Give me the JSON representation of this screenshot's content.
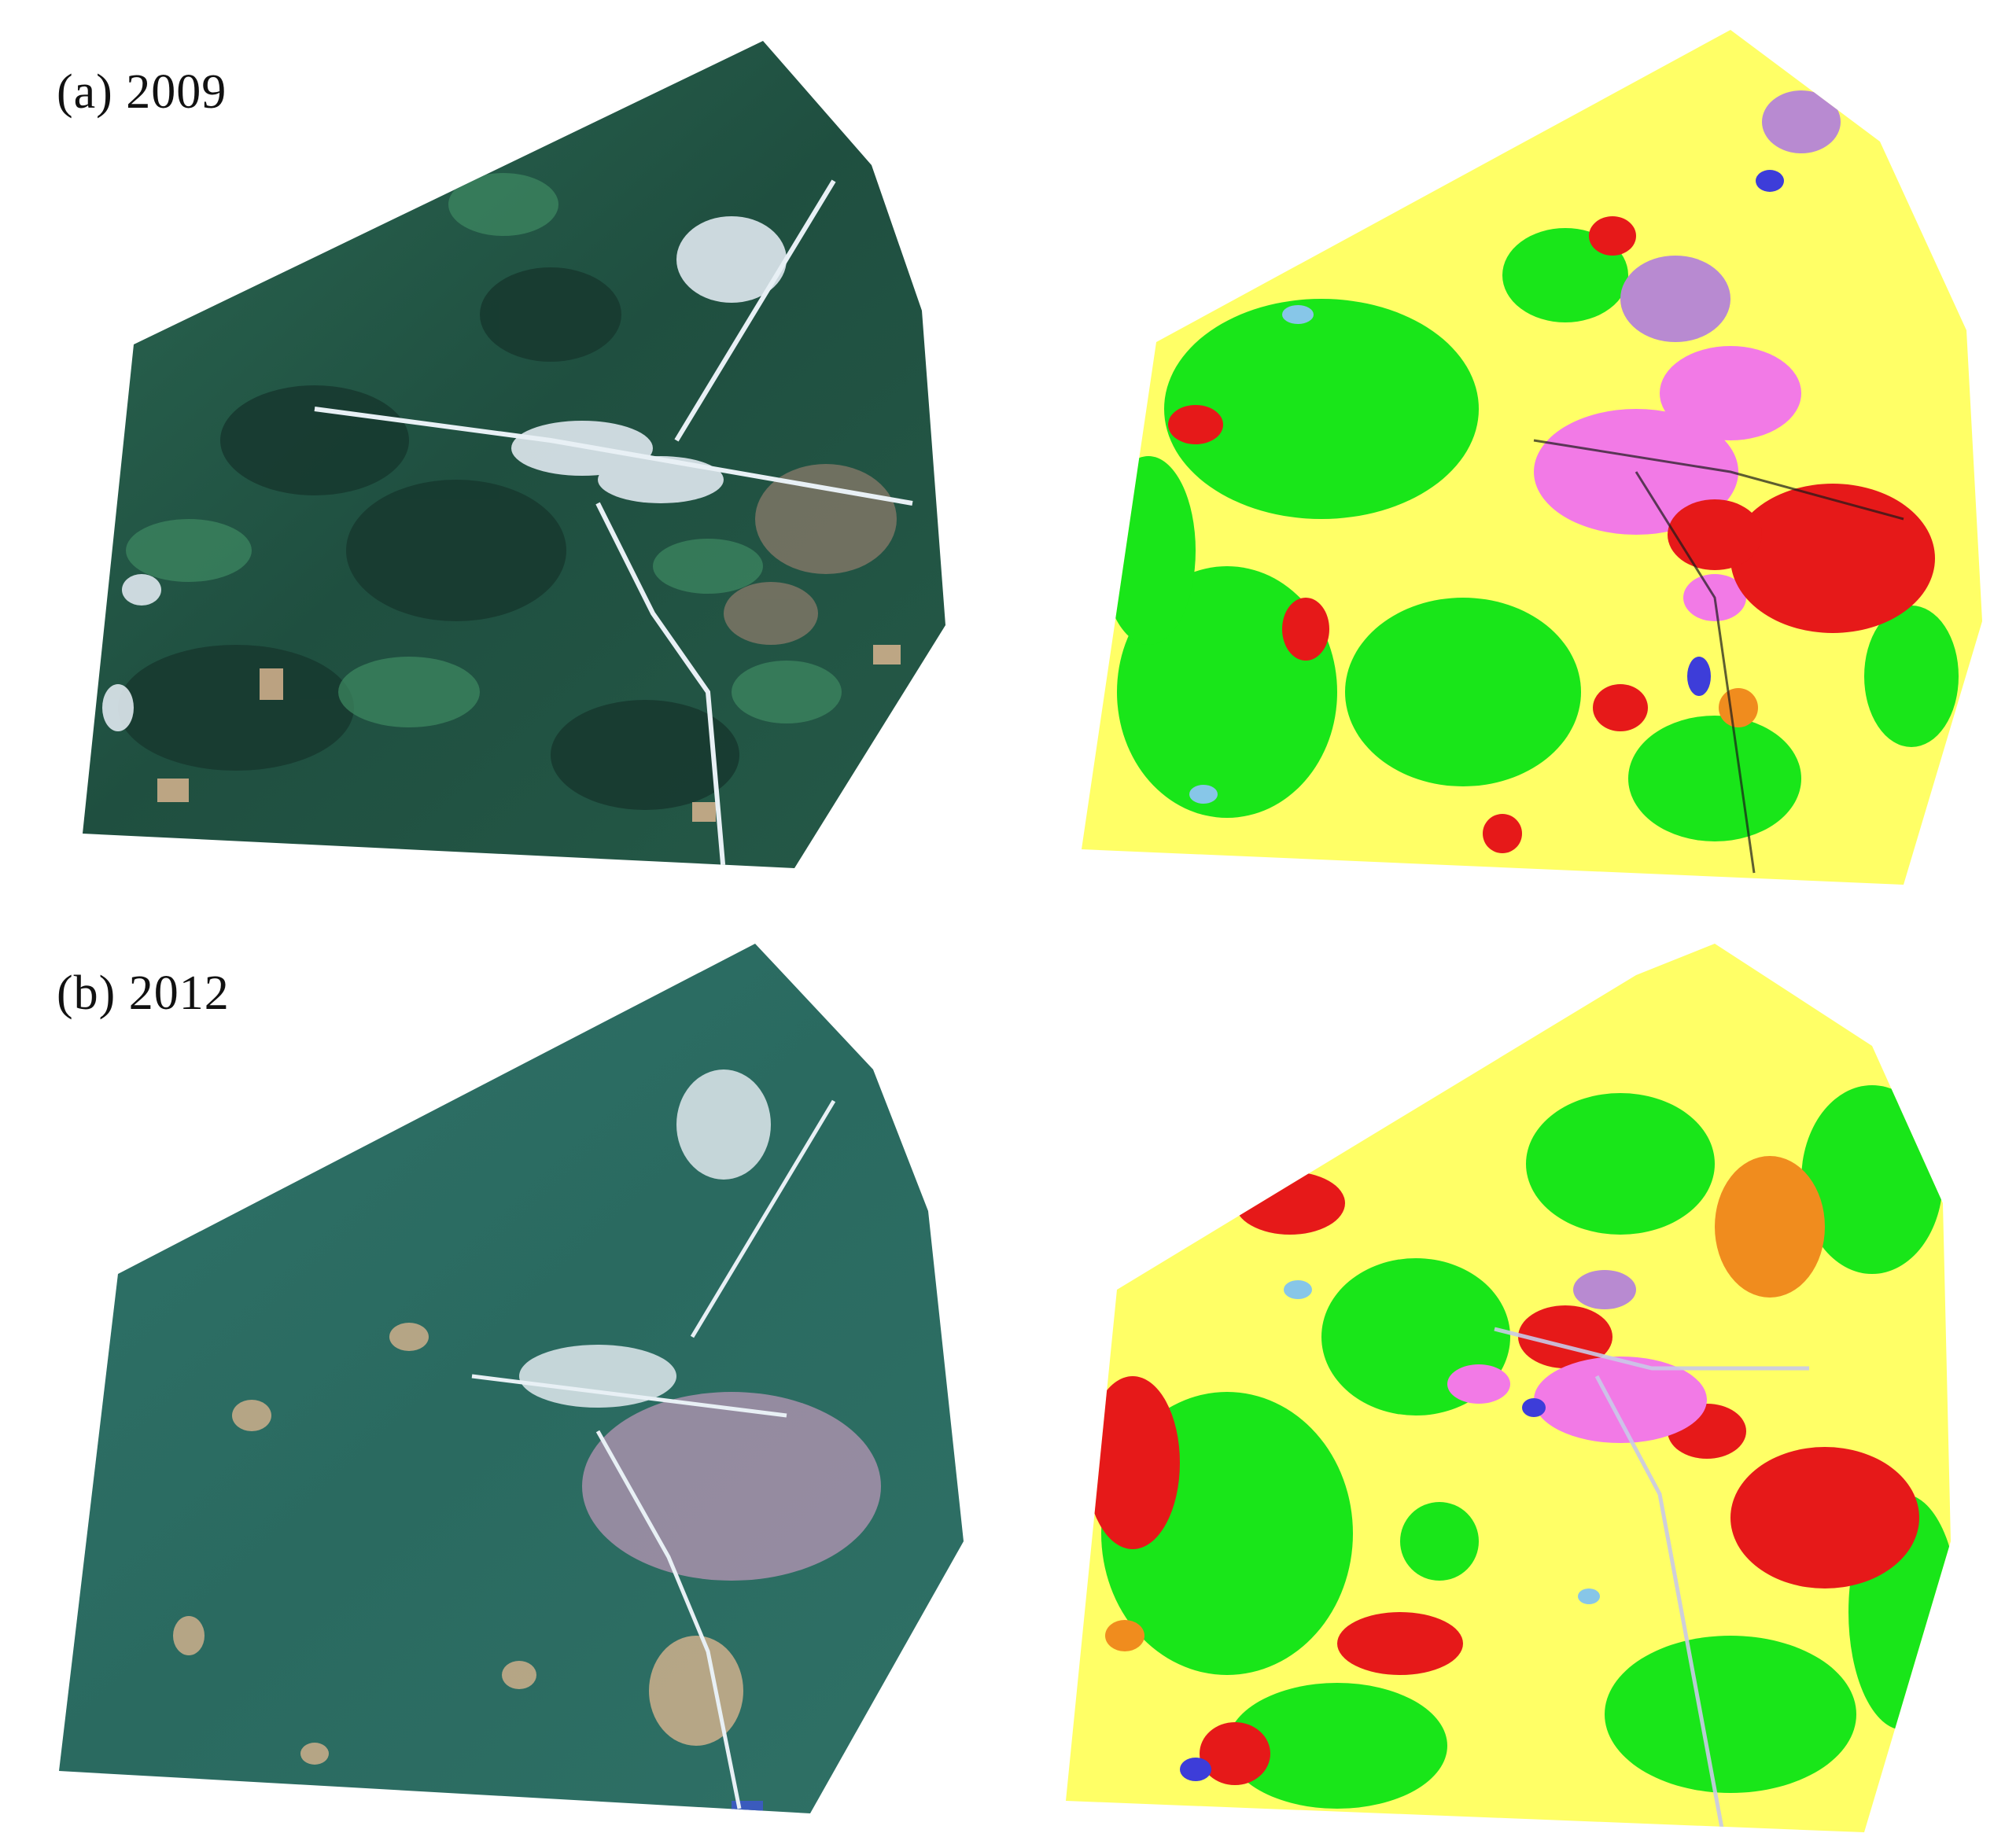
{
  "figure": {
    "panels": [
      {
        "label": "(a) 2009"
      },
      {
        "label": "(b) 2012"
      }
    ]
  },
  "imagery": {
    "kind": "satellite false-color composite",
    "palette": {
      "base_dark": "#1d4a3c",
      "base_mid": "#2e6a55",
      "urban": "#dfe8ef",
      "bare": "#d8b48f",
      "water": "#3b5bbd"
    }
  },
  "classification": {
    "kind": "land-cover classification map",
    "classes_colors": [
      "#ffff66",
      "#19e619",
      "#e61919",
      "#f27ae6",
      "#b88ad1",
      "#3d3dd9",
      "#f08c1e",
      "#87c6e8",
      "#1a1a1a"
    ]
  }
}
